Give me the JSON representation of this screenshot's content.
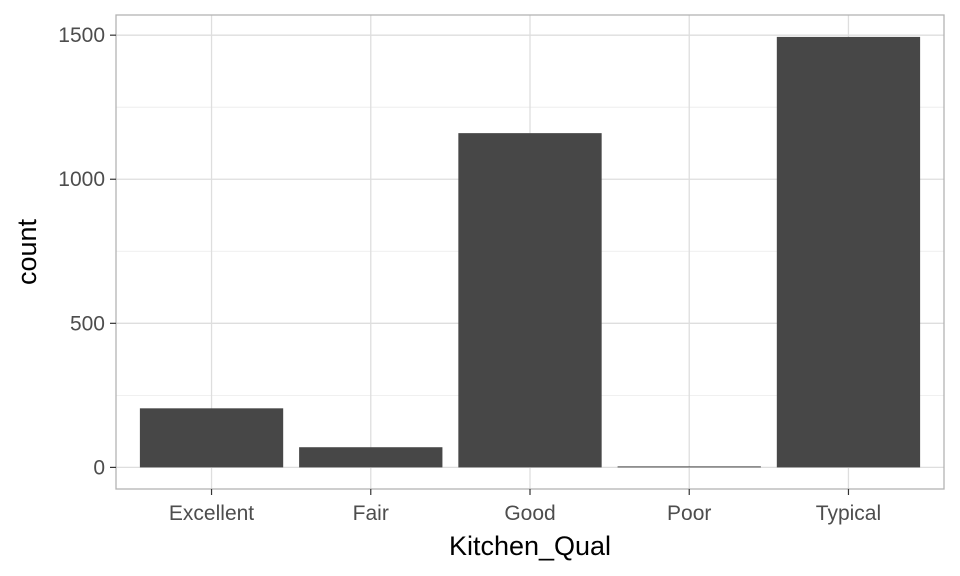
{
  "chart_data": {
    "type": "bar",
    "categories": [
      "Excellent",
      "Fair",
      "Good",
      "Poor",
      "Typical"
    ],
    "values": [
      205,
      70,
      1160,
      2,
      1494
    ],
    "title": "",
    "xlabel": "Kitchen_Qual",
    "ylabel": "count",
    "ylim": [
      -75,
      1570
    ],
    "yticks": [
      0,
      500,
      1000,
      1500
    ],
    "grid": true,
    "theme": "light",
    "bar_color": "#474747"
  }
}
